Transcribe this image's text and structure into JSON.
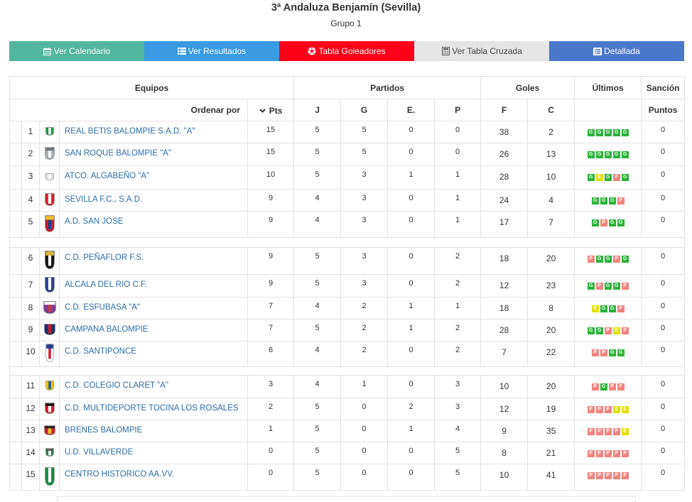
{
  "header": {
    "title": "3ª Andaluza Benjamín (Sevilla)",
    "subtitle": "Grupo 1"
  },
  "nav": {
    "buttons": [
      {
        "label": "Ver Calendario",
        "icon": "calendar-icon",
        "color": "#52b69e"
      },
      {
        "label": "Ver Resultados",
        "icon": "list-icon",
        "color": "#3a9ae2"
      },
      {
        "label": "Tabla Goleadores",
        "icon": "soccer-ball-icon",
        "color": "#fe0017"
      },
      {
        "label": "Ver Tabla Cruzada",
        "icon": "calculator-icon",
        "color": "#e5e5e5"
      },
      {
        "label": "Detallada",
        "icon": "list-alt-icon",
        "color": "#4a78c9"
      }
    ]
  },
  "table": {
    "group_headers": {
      "teams": "Equipos",
      "matches": "Partidos",
      "goals": "Goles",
      "last_results": "Últimos",
      "sanction": "Sanción"
    },
    "columns": {
      "sort_label": "Ordenar por",
      "pts": "Pts",
      "played": "J",
      "won": "G",
      "drawn": "E.",
      "lost": "P",
      "goals_for": "F",
      "goals_against": "C",
      "sanction_points": "Puntos"
    },
    "sort_icon": "chevron-down-icon",
    "link_color": "#2d6ca5",
    "result_colors": {
      "G": "#2cb33a",
      "E": "#e3df00",
      "P": "#f2837f"
    },
    "groups": [
      {
        "rows": [
          {
            "pos": 1,
            "team": "REAL BETIS BALOMPIE S.A.D. \"A\"",
            "crest": {
              "icon": "real-betis-crest-icon",
              "colors": [
                "#1c9a43",
                "#ffffff"
              ]
            },
            "pts": 15,
            "j": 5,
            "g": 5,
            "e": 0,
            "p": 0,
            "f": 38,
            "c": 2,
            "last": [
              "G",
              "G",
              "G",
              "G",
              "G"
            ],
            "sancion": 0
          },
          {
            "pos": 2,
            "team": "SAN ROQUE BALOMPIE \"A\"",
            "crest": {
              "icon": "san-roque-crest-icon",
              "colors": [
                "#a7afb6",
                "#ffffff",
                "#6b7580"
              ]
            },
            "pts": 15,
            "j": 5,
            "g": 5,
            "e": 0,
            "p": 0,
            "f": 26,
            "c": 13,
            "last": [
              "G",
              "G",
              "G",
              "G",
              "G"
            ],
            "sancion": 0
          },
          {
            "pos": 3,
            "team": "ATCO. ALGABEÑO \"A\"",
            "crest": {
              "icon": "atco-algabeno-crest-icon",
              "colors": [
                "#dfe4e8",
                "#ffffff"
              ]
            },
            "pts": 10,
            "j": 5,
            "g": 3,
            "e": 1,
            "p": 1,
            "f": 28,
            "c": 10,
            "last": [
              "G",
              "E",
              "G",
              "P",
              "G"
            ],
            "sancion": 0
          },
          {
            "pos": 4,
            "team": "SEVILLA F.C., S.A.D.",
            "crest": {
              "icon": "sevilla-fc-crest-icon",
              "colors": [
                "#d8232a",
                "#ffffff"
              ]
            },
            "pts": 9,
            "j": 4,
            "g": 3,
            "e": 0,
            "p": 1,
            "f": 24,
            "c": 4,
            "last": [
              "G",
              "G",
              "G",
              "P"
            ],
            "sancion": 0
          },
          {
            "pos": 5,
            "team": "A.D. SAN JOSE",
            "crest": {
              "icon": "ad-san-jose-crest-icon",
              "colors": [
                "#c8202c",
                "#1d3f8f",
                "#f2c230"
              ]
            },
            "pts": 9,
            "j": 4,
            "g": 3,
            "e": 0,
            "p": 1,
            "f": 17,
            "c": 7,
            "last": [
              "G",
              "P",
              "G",
              "G"
            ],
            "sancion": 0
          }
        ]
      },
      {
        "rows": [
          {
            "pos": 6,
            "team": "C.D. PEÑAFLOR F.S.",
            "crest": {
              "icon": "cd-penaflor-crest-icon",
              "colors": [
                "#151515",
                "#ffffff",
                "#d8b23a"
              ]
            },
            "pts": 9,
            "j": 5,
            "g": 3,
            "e": 0,
            "p": 2,
            "f": 18,
            "c": 20,
            "last": [
              "P",
              "G",
              "G",
              "P",
              "G"
            ],
            "sancion": 0
          },
          {
            "pos": 7,
            "team": "ALCALA DEL RIO C.F.",
            "crest": {
              "icon": "alcala-del-rio-crest-icon",
              "colors": [
                "#2a3f8f",
                "#ffffff"
              ]
            },
            "pts": 9,
            "j": 5,
            "g": 3,
            "e": 0,
            "p": 2,
            "f": 12,
            "c": 23,
            "last": [
              "G",
              "P",
              "G",
              "G",
              "P"
            ],
            "sancion": 0
          },
          {
            "pos": 8,
            "team": "C.D. ESFUBASA \"A\"",
            "crest": {
              "icon": "cd-esfubasa-crest-icon",
              "colors": [
                "#7d3c8f",
                "#c23a54",
                "#ffffff"
              ]
            },
            "pts": 7,
            "j": 4,
            "g": 2,
            "e": 1,
            "p": 1,
            "f": 18,
            "c": 8,
            "last": [
              "E",
              "G",
              "G",
              "P"
            ],
            "sancion": 0
          },
          {
            "pos": 9,
            "team": "CAMPANA BALOMPIE",
            "crest": {
              "icon": "campana-balompie-crest-icon",
              "colors": [
                "#1b2f6b",
                "#c0202a"
              ]
            },
            "pts": 7,
            "j": 5,
            "g": 2,
            "e": 1,
            "p": 2,
            "f": 28,
            "c": 20,
            "last": [
              "G",
              "G",
              "P",
              "E",
              "P"
            ],
            "sancion": 0
          },
          {
            "pos": 10,
            "team": "C.D. SANTIPONCE",
            "crest": {
              "icon": "cd-santiponce-crest-icon",
              "colors": [
                "#ffffff",
                "#d01f2e",
                "#1f3b93"
              ]
            },
            "pts": 6,
            "j": 4,
            "g": 2,
            "e": 0,
            "p": 2,
            "f": 7,
            "c": 22,
            "last": [
              "P",
              "P",
              "G",
              "G"
            ],
            "sancion": 0
          }
        ]
      },
      {
        "rows": [
          {
            "pos": 11,
            "team": "C.D. COLEGIO CLARET \"A\"",
            "crest": {
              "icon": "colegio-claret-crest-icon",
              "colors": [
                "#f2c300",
                "#1d5aa6"
              ]
            },
            "pts": 3,
            "j": 4,
            "g": 1,
            "e": 0,
            "p": 3,
            "f": 10,
            "c": 20,
            "last": [
              "P",
              "G",
              "P",
              "P"
            ],
            "sancion": 0
          },
          {
            "pos": 12,
            "team": "C.D. MULTIDEPORTE TOCINA LOS ROSALES",
            "crest": {
              "icon": "tocina-los-rosales-crest-icon",
              "colors": [
                "#d51f2a",
                "#ffffff",
                "#111111"
              ]
            },
            "pts": 2,
            "j": 5,
            "g": 0,
            "e": 2,
            "p": 3,
            "f": 12,
            "c": 19,
            "last": [
              "P",
              "P",
              "P",
              "E",
              "E"
            ],
            "sancion": 0
          },
          {
            "pos": 13,
            "team": "BRENES BALOMPIE",
            "crest": {
              "icon": "brenes-balompie-crest-icon",
              "colors": [
                "#c8202a",
                "#f2c230",
                "#222222"
              ]
            },
            "pts": 1,
            "j": 5,
            "g": 0,
            "e": 1,
            "p": 4,
            "f": 9,
            "c": 35,
            "last": [
              "P",
              "P",
              "P",
              "P",
              "E"
            ],
            "sancion": 0
          },
          {
            "pos": 14,
            "team": "U.D. VILLAVERDE",
            "crest": {
              "icon": "ud-villaverde-crest-icon",
              "colors": [
                "#2e7d4f",
                "#ffffff",
                "#555555"
              ]
            },
            "pts": 0,
            "j": 5,
            "g": 0,
            "e": 0,
            "p": 5,
            "f": 8,
            "c": 21,
            "last": [
              "P",
              "P",
              "P",
              "P",
              "P"
            ],
            "sancion": 0
          },
          {
            "pos": 15,
            "team": "CENTRO HISTORICO AA.VV.",
            "crest": {
              "icon": "centro-historico-crest-icon",
              "colors": [
                "#1a8a3f",
                "#ffffff"
              ]
            },
            "pts": 0,
            "j": 5,
            "g": 0,
            "e": 0,
            "p": 5,
            "f": 10,
            "c": 41,
            "last": [
              "P",
              "P",
              "P",
              "P",
              "P"
            ],
            "sancion": 0
          }
        ]
      }
    ]
  }
}
